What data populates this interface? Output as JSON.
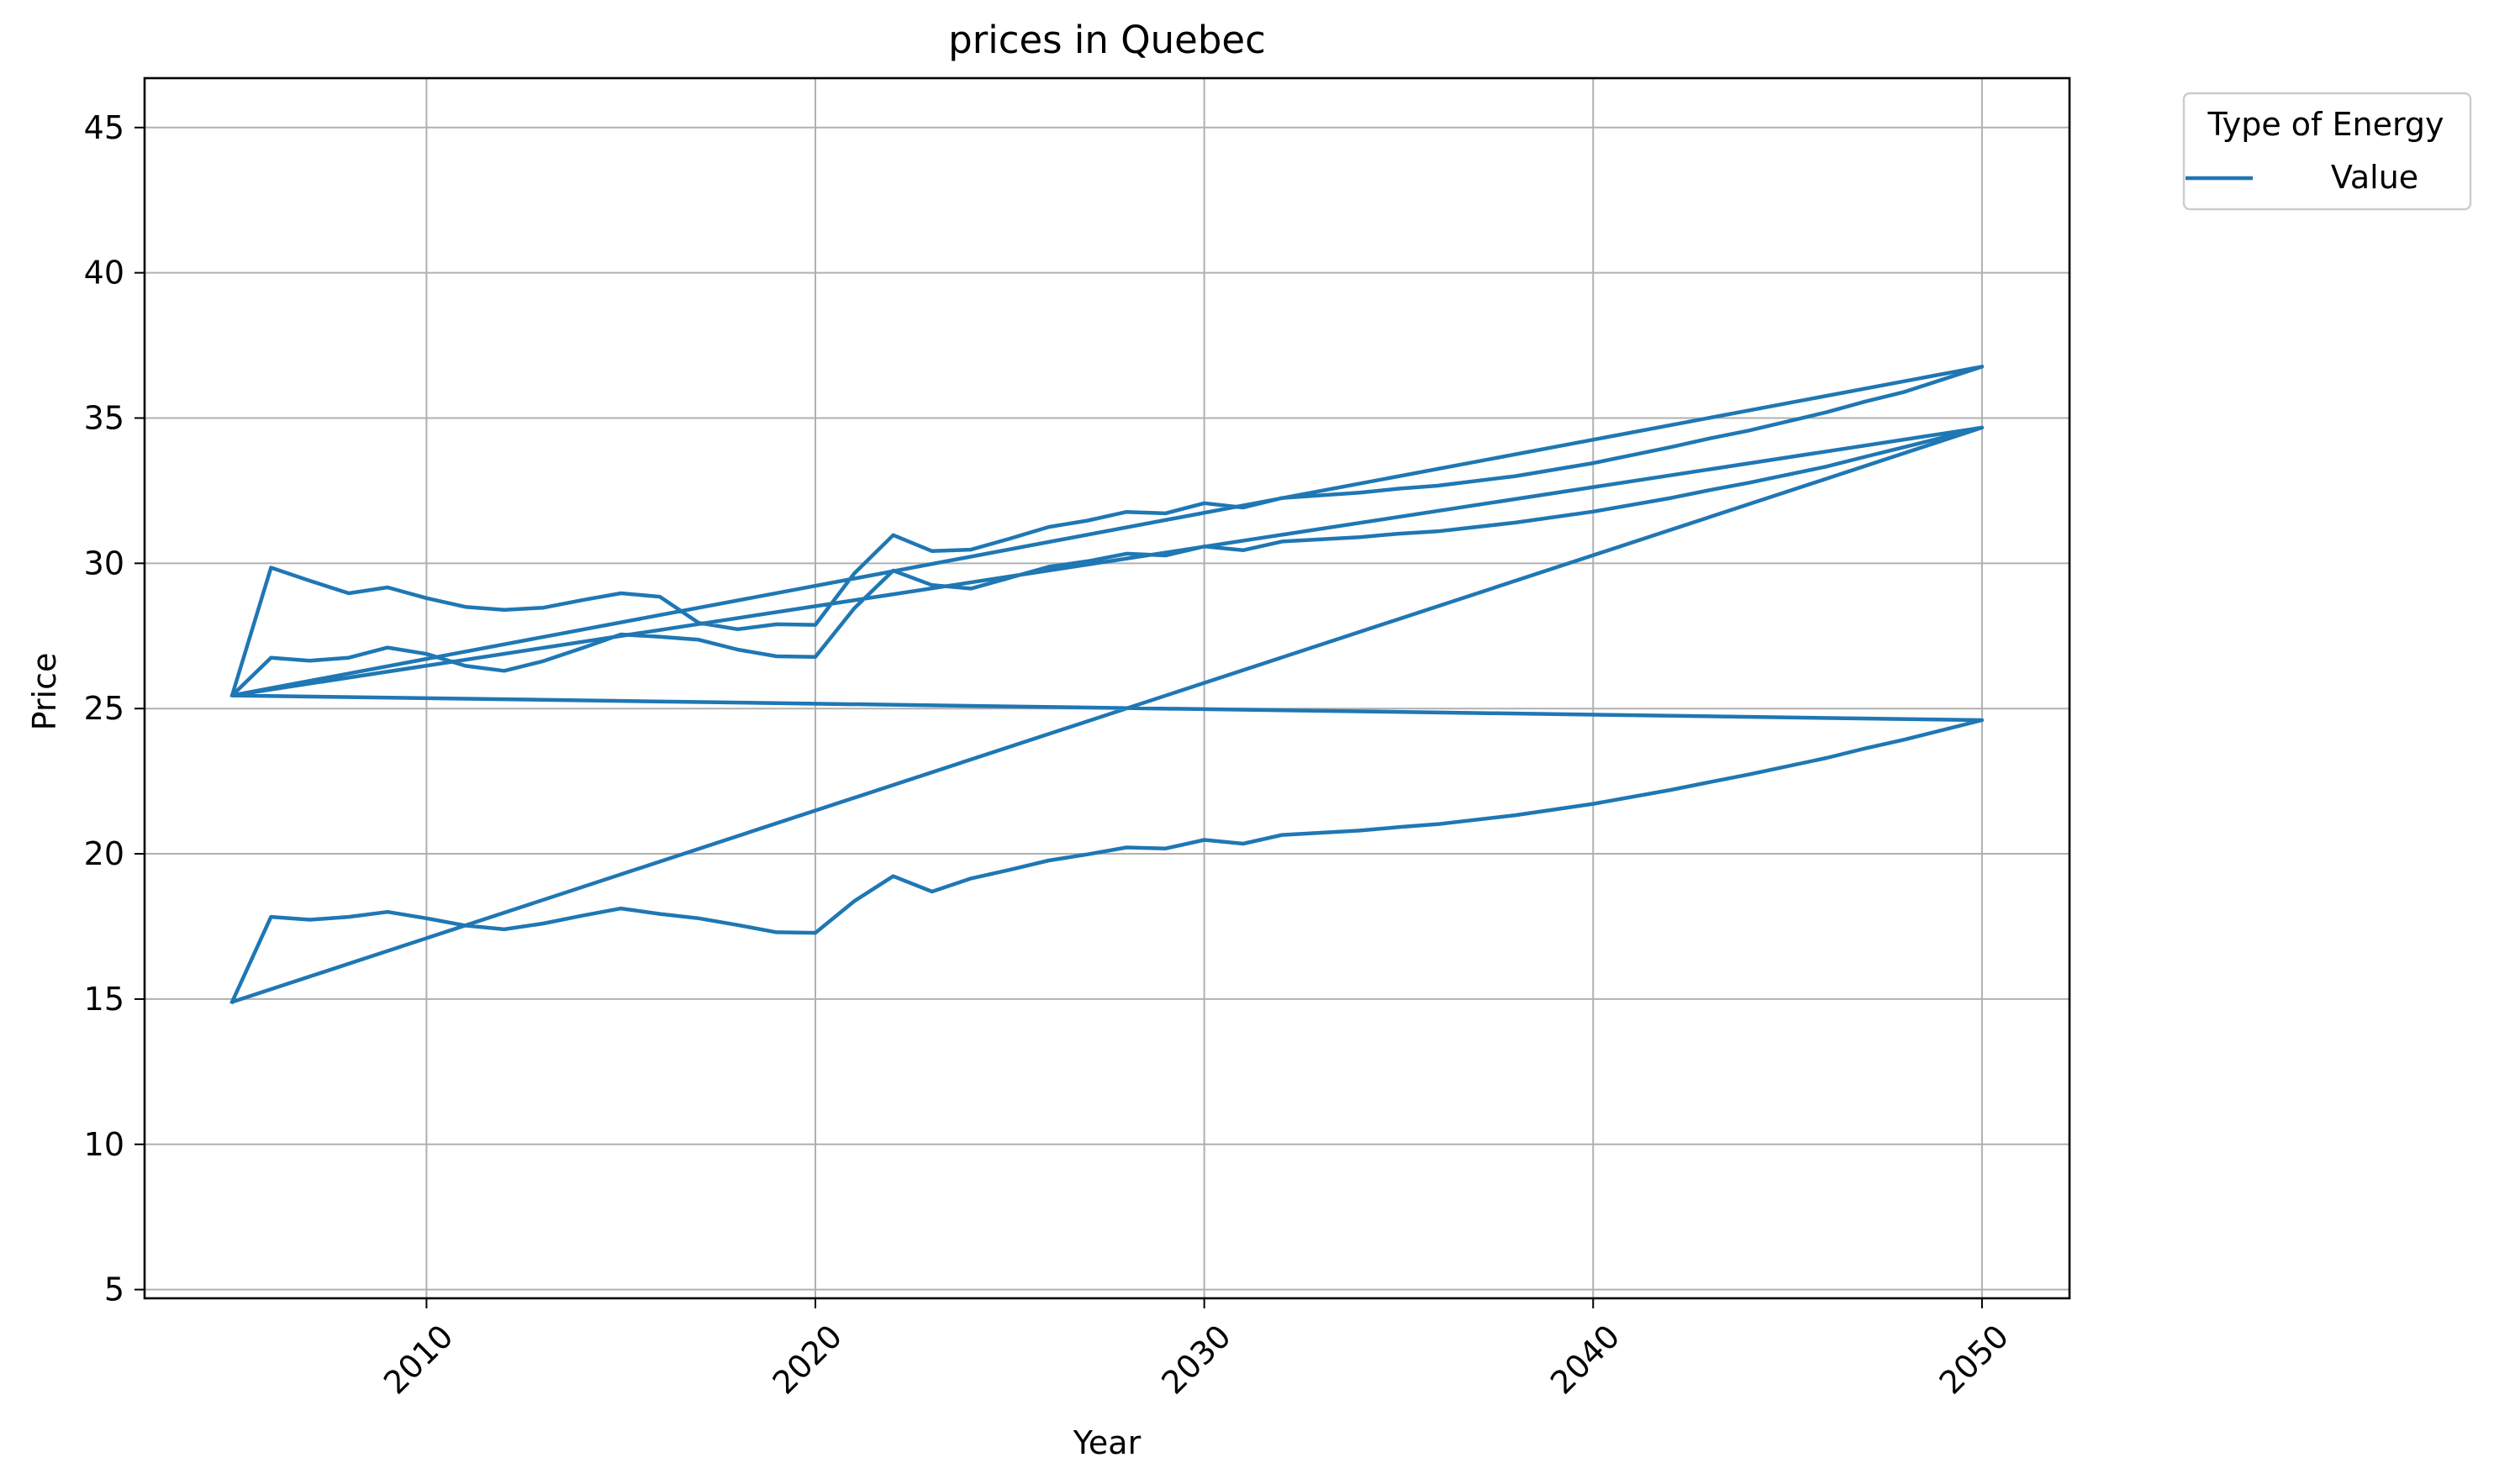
{
  "chart_data": {
    "type": "line",
    "title": "prices in Quebec",
    "xlabel": "Year",
    "ylabel": "Price",
    "xlim": [
      2002.75,
      2052.25
    ],
    "ylim": [
      4.7,
      46.7
    ],
    "xticks": [
      2010,
      2020,
      2030,
      2040,
      2050
    ],
    "yticks": [
      5,
      10,
      15,
      20,
      25,
      30,
      35,
      40,
      45
    ],
    "grid": true,
    "line_color": "#1f77b4",
    "legend": {
      "title": "Type of Energy",
      "position": "outside-top-right",
      "entries": [
        "Value"
      ]
    },
    "series": [
      {
        "name": "Value",
        "points": [
          [
            2005,
            25.45
          ],
          [
            2006,
            29.85
          ],
          [
            2007,
            29.4
          ],
          [
            2008,
            28.97
          ],
          [
            2009,
            29.17
          ],
          [
            2010,
            28.8
          ],
          [
            2011,
            28.5
          ],
          [
            2012,
            28.4
          ],
          [
            2013,
            28.47
          ],
          [
            2014,
            28.73
          ],
          [
            2015,
            28.97
          ],
          [
            2016,
            28.85
          ],
          [
            2017,
            27.95
          ],
          [
            2018,
            27.73
          ],
          [
            2019,
            27.9
          ],
          [
            2020,
            27.88
          ],
          [
            2021,
            29.65
          ],
          [
            2022,
            30.97
          ],
          [
            2023,
            30.42
          ],
          [
            2024,
            30.47
          ],
          [
            2025,
            30.85
          ],
          [
            2026,
            31.25
          ],
          [
            2027,
            31.47
          ],
          [
            2028,
            31.77
          ],
          [
            2029,
            31.72
          ],
          [
            2030,
            32.07
          ],
          [
            2031,
            31.92
          ],
          [
            2032,
            32.25
          ],
          [
            2034,
            32.43
          ],
          [
            2035,
            32.57
          ],
          [
            2036,
            32.67
          ],
          [
            2038,
            33.0
          ],
          [
            2040,
            33.45
          ],
          [
            2042,
            34.0
          ],
          [
            2043,
            34.3
          ],
          [
            2044,
            34.57
          ],
          [
            2046,
            35.2
          ],
          [
            2047,
            35.57
          ],
          [
            2048,
            35.9
          ],
          [
            2050,
            36.77
          ],
          [
            2005,
            25.45
          ],
          [
            2006,
            26.75
          ],
          [
            2007,
            26.65
          ],
          [
            2008,
            26.75
          ],
          [
            2009,
            27.1
          ],
          [
            2010,
            26.88
          ],
          [
            2011,
            26.47
          ],
          [
            2012,
            26.3
          ],
          [
            2013,
            26.63
          ],
          [
            2014,
            27.08
          ],
          [
            2015,
            27.55
          ],
          [
            2016,
            27.47
          ],
          [
            2017,
            27.37
          ],
          [
            2018,
            27.03
          ],
          [
            2019,
            26.8
          ],
          [
            2020,
            26.78
          ],
          [
            2021,
            28.45
          ],
          [
            2022,
            29.75
          ],
          [
            2023,
            29.25
          ],
          [
            2024,
            29.13
          ],
          [
            2025,
            29.5
          ],
          [
            2026,
            29.88
          ],
          [
            2027,
            30.07
          ],
          [
            2028,
            30.33
          ],
          [
            2029,
            30.27
          ],
          [
            2030,
            30.58
          ],
          [
            2031,
            30.45
          ],
          [
            2032,
            30.75
          ],
          [
            2034,
            30.9
          ],
          [
            2035,
            31.02
          ],
          [
            2036,
            31.1
          ],
          [
            2038,
            31.4
          ],
          [
            2040,
            31.78
          ],
          [
            2042,
            32.25
          ],
          [
            2043,
            32.52
          ],
          [
            2044,
            32.77
          ],
          [
            2046,
            33.33
          ],
          [
            2047,
            33.67
          ],
          [
            2048,
            34.0
          ],
          [
            2050,
            34.67
          ],
          [
            2005,
            14.9
          ],
          [
            2050,
            34.67
          ],
          [
            2005,
            25.45
          ],
          [
            2050,
            24.6
          ],
          [
            2048,
            23.93
          ],
          [
            2047,
            23.63
          ],
          [
            2046,
            23.3
          ],
          [
            2044,
            22.73
          ],
          [
            2043,
            22.47
          ],
          [
            2042,
            22.2
          ],
          [
            2040,
            21.72
          ],
          [
            2038,
            21.33
          ],
          [
            2036,
            21.02
          ],
          [
            2035,
            20.92
          ],
          [
            2034,
            20.8
          ],
          [
            2032,
            20.65
          ],
          [
            2031,
            20.35
          ],
          [
            2030,
            20.48
          ],
          [
            2029,
            20.18
          ],
          [
            2028,
            20.22
          ],
          [
            2027,
            19.98
          ],
          [
            2026,
            19.77
          ],
          [
            2025,
            19.45
          ],
          [
            2024,
            19.15
          ],
          [
            2023,
            18.7
          ],
          [
            2022,
            19.23
          ],
          [
            2021,
            18.37
          ],
          [
            2020,
            17.28
          ],
          [
            2019,
            17.3
          ],
          [
            2018,
            17.55
          ],
          [
            2017,
            17.78
          ],
          [
            2016,
            17.93
          ],
          [
            2015,
            18.12
          ],
          [
            2014,
            17.87
          ],
          [
            2013,
            17.6
          ],
          [
            2012,
            17.4
          ],
          [
            2011,
            17.53
          ],
          [
            2010,
            17.78
          ],
          [
            2009,
            18.0
          ],
          [
            2008,
            17.83
          ],
          [
            2007,
            17.73
          ],
          [
            2006,
            17.83
          ],
          [
            2005,
            14.9
          ]
        ]
      }
    ]
  }
}
